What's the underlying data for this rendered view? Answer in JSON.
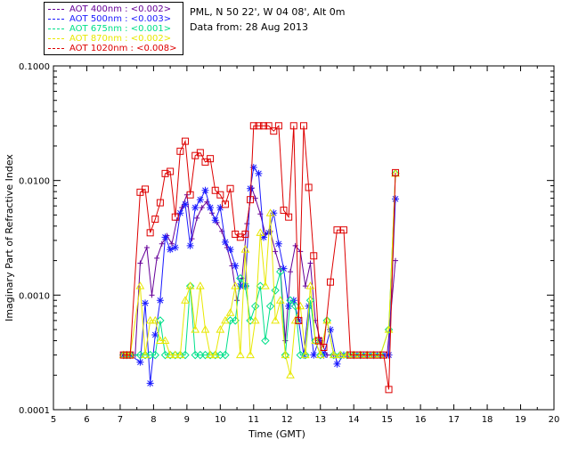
{
  "legend": {
    "items": [
      {
        "label": "AOT  400nm : <0.002>",
        "color": "#660099"
      },
      {
        "label": "AOT  500nm : <0.003>",
        "color": "#1a1aff"
      },
      {
        "label": "AOT  675nm : <0.001>",
        "color": "#00e08a"
      },
      {
        "label": "AOT  870nm : <0.002>",
        "color": "#e8e800"
      },
      {
        "label": "AOT 1020nm : <0.008>",
        "color": "#dd0000"
      }
    ]
  },
  "info": {
    "site": "PML, N 50 22', W 04 08', Alt 0m",
    "date": "Data from: 28 Aug 2013"
  },
  "chart_data": {
    "type": "line",
    "title": "",
    "xlabel": "Time (GMT)",
    "ylabel": "Imaginary Part of Refractive Index",
    "xlim": [
      5,
      20
    ],
    "ylim": [
      0.0001,
      0.1
    ],
    "yscale": "log",
    "xticks": [
      "5",
      "6",
      "7",
      "8",
      "9",
      "10",
      "11",
      "12",
      "13",
      "14",
      "15",
      "16",
      "17",
      "18",
      "19",
      "20"
    ],
    "yticks": [
      "0.0001",
      "0.0010",
      "0.0100",
      "0.1000"
    ],
    "grid": false,
    "legend_position": "top-left outside",
    "series": [
      {
        "name": "AOT  400nm : <0.002>",
        "color": "#660099",
        "marker": "plus",
        "x": [
          7.1,
          7.2,
          7.3,
          7.45,
          7.6,
          7.8,
          7.95,
          8.1,
          8.25,
          8.4,
          8.55,
          8.7,
          8.85,
          9.0,
          9.15,
          9.3,
          9.45,
          9.6,
          9.75,
          9.9,
          10.05,
          10.2,
          10.35,
          10.5,
          10.65,
          10.8,
          10.95,
          11.05,
          11.2,
          11.35,
          11.5,
          11.65,
          11.8,
          11.95,
          12.1,
          12.25,
          12.4,
          12.55,
          12.7,
          12.85,
          13.0,
          13.2,
          13.4,
          13.6,
          13.8,
          14.0,
          14.2,
          14.4,
          14.6,
          14.8,
          15.0,
          15.25
        ],
        "y": [
          0.0003,
          0.0003,
          0.0003,
          0.0003,
          0.0019,
          0.0026,
          0.001,
          0.0021,
          0.0028,
          0.0033,
          0.0028,
          0.0045,
          0.0058,
          0.0075,
          0.0031,
          0.0047,
          0.0058,
          0.0065,
          0.0052,
          0.0043,
          0.0036,
          0.0026,
          0.0018,
          0.0009,
          0.0014,
          0.0042,
          0.0086,
          0.007,
          0.0051,
          0.0034,
          0.0036,
          0.0024,
          0.0017,
          0.0004,
          0.0016,
          0.0027,
          0.0024,
          0.0012,
          0.0019,
          0.0006,
          0.0004,
          0.0003,
          0.0003,
          0.0003,
          0.0003,
          0.0003,
          0.0003,
          0.0003,
          0.0003,
          0.0003,
          0.0003,
          0.002
        ]
      },
      {
        "name": "AOT  500nm : <0.003>",
        "color": "#1a1aff",
        "marker": "star",
        "x": [
          7.1,
          7.2,
          7.3,
          7.6,
          7.75,
          7.9,
          8.05,
          8.2,
          8.35,
          8.5,
          8.65,
          8.8,
          8.95,
          9.1,
          9.25,
          9.4,
          9.55,
          9.7,
          9.85,
          10.0,
          10.15,
          10.3,
          10.45,
          10.6,
          10.75,
          10.9,
          11.0,
          11.15,
          11.3,
          11.45,
          11.6,
          11.75,
          11.9,
          12.05,
          12.2,
          12.35,
          12.5,
          12.65,
          12.8,
          12.95,
          13.1,
          13.3,
          13.5,
          13.7,
          13.9,
          14.1,
          14.3,
          14.5,
          14.7,
          14.9,
          15.05,
          15.25
        ],
        "y": [
          0.0003,
          0.0003,
          0.0003,
          0.00026,
          0.00085,
          0.00017,
          0.00045,
          0.0009,
          0.0032,
          0.0025,
          0.0026,
          0.0052,
          0.0062,
          0.0027,
          0.0058,
          0.0068,
          0.0082,
          0.0058,
          0.0045,
          0.0058,
          0.0029,
          0.0025,
          0.0018,
          0.0012,
          0.0012,
          0.0085,
          0.013,
          0.0115,
          0.0032,
          0.0035,
          0.0052,
          0.0028,
          0.0017,
          0.0008,
          0.0009,
          0.0006,
          0.0003,
          0.0008,
          0.0003,
          0.0004,
          0.0003,
          0.0005,
          0.00025,
          0.0003,
          0.0003,
          0.0003,
          0.0003,
          0.0003,
          0.0003,
          0.0003,
          0.0003,
          0.0069
        ]
      },
      {
        "name": "AOT  675nm : <0.001>",
        "color": "#00e08a",
        "marker": "diamond",
        "x": [
          7.1,
          7.2,
          7.3,
          7.6,
          7.75,
          7.9,
          8.05,
          8.2,
          8.35,
          8.5,
          8.65,
          8.8,
          8.95,
          9.1,
          9.25,
          9.4,
          9.55,
          9.7,
          9.85,
          10.0,
          10.15,
          10.3,
          10.45,
          10.6,
          10.75,
          10.9,
          11.05,
          11.2,
          11.35,
          11.5,
          11.65,
          11.8,
          11.95,
          12.1,
          12.25,
          12.4,
          12.55,
          12.7,
          12.85,
          13.0,
          13.2,
          13.4,
          13.6,
          13.8,
          14.0,
          14.2,
          14.4,
          14.6,
          14.8,
          15.05,
          15.25
        ],
        "y": [
          0.0003,
          0.0003,
          0.0003,
          0.0003,
          0.0003,
          0.0003,
          0.0003,
          0.0006,
          0.0003,
          0.0003,
          0.0003,
          0.0003,
          0.0003,
          0.0012,
          0.0003,
          0.0003,
          0.0003,
          0.0003,
          0.0003,
          0.0003,
          0.0003,
          0.0006,
          0.0006,
          0.0014,
          0.0012,
          0.0006,
          0.0008,
          0.0012,
          0.0004,
          0.0008,
          0.0011,
          0.0016,
          0.0003,
          0.0009,
          0.0008,
          0.0003,
          0.0003,
          0.0009,
          0.0004,
          0.0003,
          0.0006,
          0.0003,
          0.0003,
          0.0003,
          0.0003,
          0.0003,
          0.0003,
          0.0003,
          0.0003,
          0.0005,
          0.0115
        ]
      },
      {
        "name": "AOT  870nm : <0.002>",
        "color": "#e8e800",
        "marker": "triangle",
        "x": [
          7.1,
          7.2,
          7.3,
          7.6,
          7.75,
          7.9,
          8.05,
          8.2,
          8.35,
          8.5,
          8.65,
          8.8,
          8.95,
          9.1,
          9.25,
          9.4,
          9.55,
          9.7,
          9.85,
          10.0,
          10.15,
          10.3,
          10.45,
          10.6,
          10.75,
          10.9,
          11.05,
          11.2,
          11.35,
          11.5,
          11.65,
          11.8,
          11.95,
          12.1,
          12.25,
          12.4,
          12.55,
          12.7,
          12.85,
          13.0,
          13.2,
          13.4,
          13.6,
          13.8,
          14.0,
          14.2,
          14.4,
          14.6,
          14.8,
          15.05,
          15.25
        ],
        "y": [
          0.0003,
          0.0003,
          0.0003,
          0.0012,
          0.0003,
          0.0006,
          0.0006,
          0.0004,
          0.0004,
          0.0003,
          0.0003,
          0.0003,
          0.0009,
          0.0012,
          0.0005,
          0.0012,
          0.0005,
          0.0003,
          0.0003,
          0.0005,
          0.0006,
          0.0007,
          0.0012,
          0.0003,
          0.0025,
          0.0003,
          0.0006,
          0.0035,
          0.0012,
          0.0052,
          0.0006,
          0.0009,
          0.0003,
          0.0002,
          0.0006,
          0.0008,
          0.0003,
          0.0012,
          0.0004,
          0.0003,
          0.0006,
          0.0003,
          0.0003,
          0.0003,
          0.0003,
          0.0003,
          0.0003,
          0.0003,
          0.0003,
          0.0005,
          0.0115
        ]
      },
      {
        "name": "AOT 1020nm : <0.008>",
        "color": "#dd0000",
        "marker": "square",
        "x": [
          7.1,
          7.2,
          7.3,
          7.6,
          7.75,
          7.9,
          8.05,
          8.2,
          8.35,
          8.5,
          8.65,
          8.8,
          8.95,
          9.1,
          9.25,
          9.4,
          9.55,
          9.7,
          9.85,
          10.0,
          10.15,
          10.3,
          10.45,
          10.6,
          10.75,
          10.9,
          11.0,
          11.15,
          11.3,
          11.45,
          11.6,
          11.75,
          11.9,
          12.05,
          12.2,
          12.35,
          12.5,
          12.65,
          12.8,
          12.95,
          13.1,
          13.3,
          13.5,
          13.7,
          13.9,
          14.1,
          14.3,
          14.5,
          14.7,
          14.9,
          15.05,
          15.25
        ],
        "y": [
          0.0003,
          0.0003,
          0.0003,
          0.0079,
          0.0084,
          0.0035,
          0.0046,
          0.0064,
          0.0115,
          0.012,
          0.0048,
          0.018,
          0.022,
          0.0075,
          0.0165,
          0.0175,
          0.0145,
          0.0155,
          0.0082,
          0.0075,
          0.0062,
          0.0085,
          0.0034,
          0.0032,
          0.0034,
          0.0068,
          0.03,
          0.03,
          0.03,
          0.03,
          0.027,
          0.03,
          0.0055,
          0.0048,
          0.03,
          0.0006,
          0.03,
          0.0087,
          0.0022,
          0.0004,
          0.00035,
          0.0013,
          0.0037,
          0.0037,
          0.0003,
          0.0003,
          0.0003,
          0.0003,
          0.0003,
          0.0003,
          0.00015,
          0.0117
        ]
      }
    ]
  }
}
